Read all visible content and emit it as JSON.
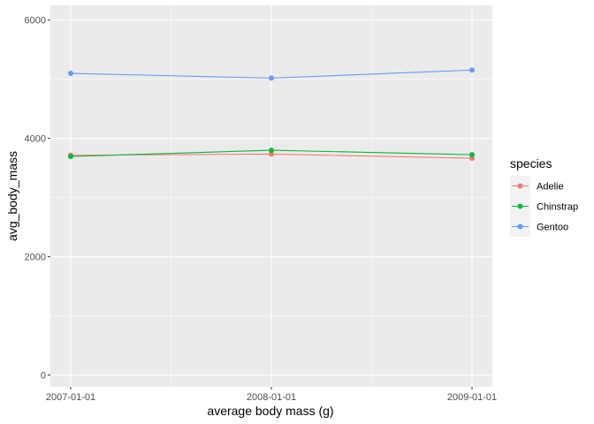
{
  "chart_data": {
    "type": "line",
    "x": [
      "2007-01-01",
      "2008-01-01",
      "2009-01-01"
    ],
    "xlabel": "average body mass (g)",
    "ylabel": "avg_body_mass",
    "ylim": [
      -200,
      6250
    ],
    "yticks": [
      0,
      2000,
      4000,
      6000
    ],
    "grid": true,
    "legend_title": "species",
    "legend_position": "right",
    "series": [
      {
        "name": "Adelie",
        "color": "#F8766D",
        "values": [
          3715,
          3735,
          3665
        ]
      },
      {
        "name": "Chinstrap",
        "color": "#00BA38",
        "values": [
          3695,
          3800,
          3725
        ]
      },
      {
        "name": "Gentoo",
        "color": "#619CFF",
        "values": [
          5100,
          5020,
          5155
        ]
      }
    ]
  }
}
